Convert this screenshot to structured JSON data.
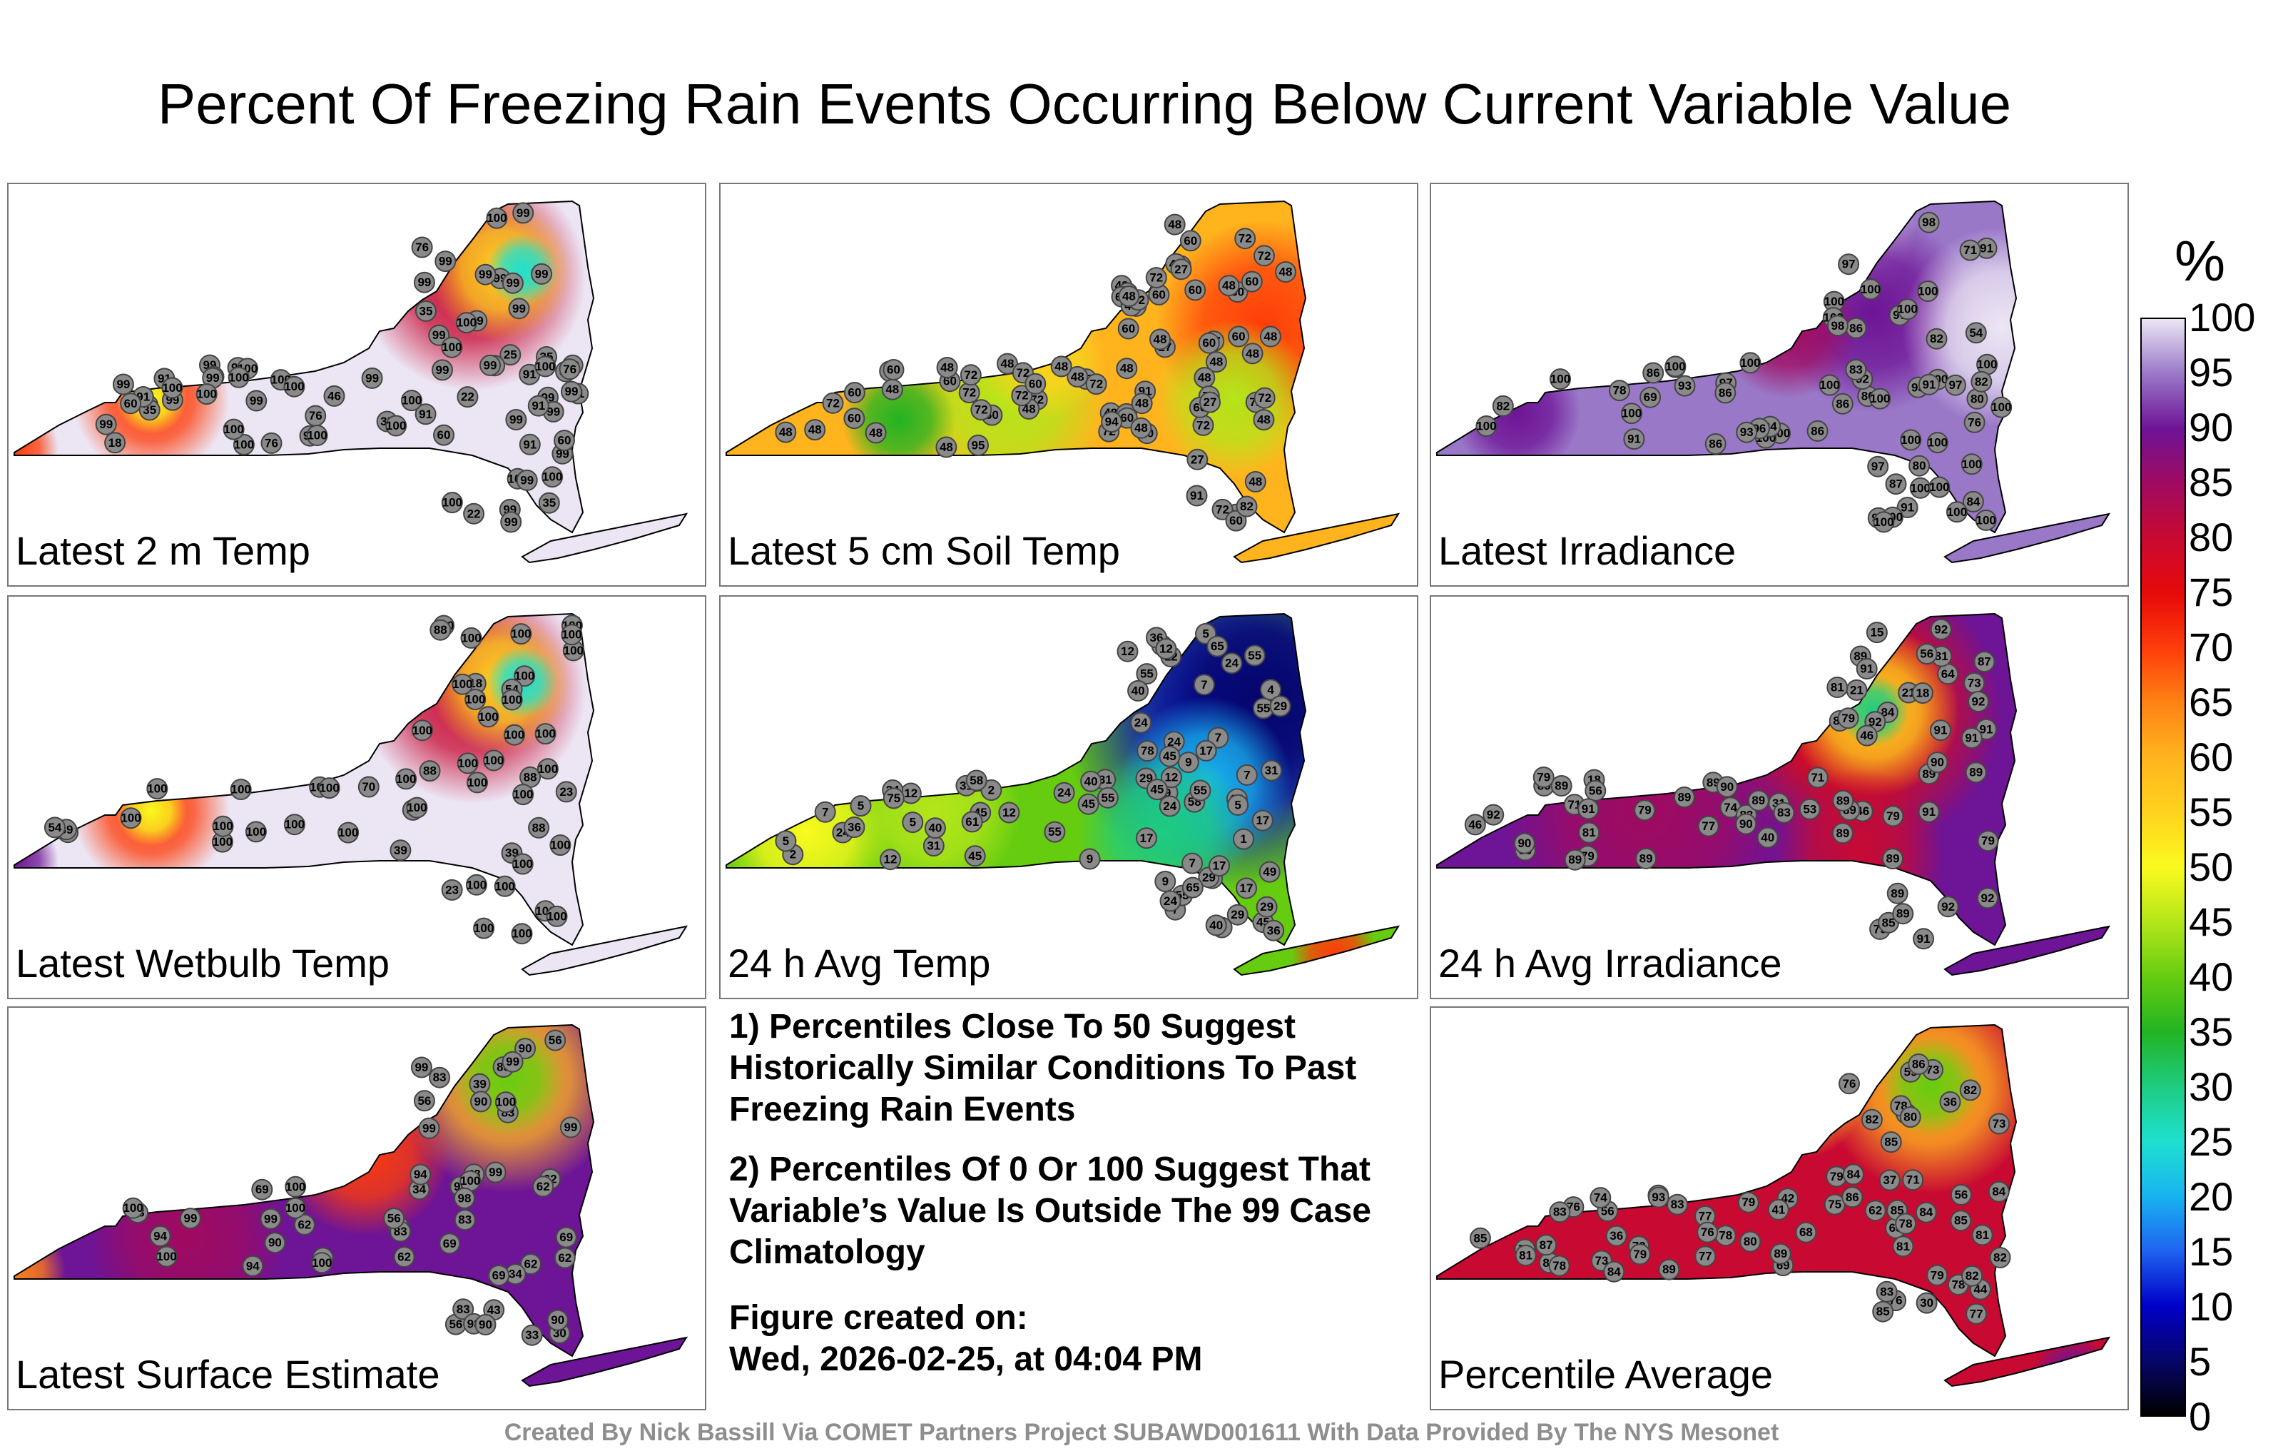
{
  "figure": {
    "title": "Percent Of Freezing Rain Events Occurring Below Current Variable Value",
    "credit": "Created By Nick Bassill Via COMET Partners Project SUBAWD001611 With Data Provided By The NYS Mesonet",
    "notes": [
      "1) Percentiles Close To 50 Suggest Historically Similar Conditions To Past Freezing Rain Events",
      "2) Percentiles Of 0 Or 100 Suggest That Variable’s Value Is Outside The 99 Case Climatology"
    ],
    "created_label": "Figure created on:",
    "created_date": "Wed, 2026-02-25, at 04:04 PM"
  },
  "colorbar": {
    "unit": "%",
    "ticks": [
      0,
      5,
      10,
      15,
      20,
      25,
      30,
      35,
      40,
      45,
      50,
      55,
      60,
      65,
      70,
      75,
      80,
      85,
      90,
      95,
      100
    ],
    "colors": [
      "#000000",
      "#06066a",
      "#0000c8",
      "#1e64f0",
      "#18b4f0",
      "#1ee0d0",
      "#1ecc80",
      "#22b422",
      "#66cc10",
      "#b4e61a",
      "#fafa1e",
      "#ffd21e",
      "#ffb41e",
      "#ff8214",
      "#ff3c0a",
      "#e60a0a",
      "#c80a32",
      "#a00a60",
      "#6e1496",
      "#9a78c8",
      "#ece6f4"
    ]
  },
  "chart_data": [
    {
      "type": "heatmap",
      "title": "Latest 2 m Temp",
      "station_values": [
        99,
        91,
        76,
        18,
        76,
        99,
        99,
        22,
        35,
        91,
        91,
        11,
        25,
        99,
        22,
        91,
        76,
        35,
        35,
        60,
        76,
        35,
        91,
        46,
        99,
        99,
        60,
        99,
        99,
        99,
        99,
        99,
        99,
        99,
        99,
        99,
        99,
        99,
        100,
        99,
        99,
        99,
        99,
        99,
        100,
        99,
        100,
        99,
        99,
        100,
        100,
        99,
        99,
        91,
        100,
        99,
        99,
        76,
        35,
        60,
        60,
        99,
        99,
        100,
        100,
        100,
        100,
        100,
        100,
        100,
        100,
        100,
        76,
        100,
        100,
        100
      ]
    },
    {
      "type": "heatmap",
      "title": "Latest 5 cm Soil Temp",
      "station_values": [
        72,
        60,
        60,
        72,
        27,
        72,
        48,
        48,
        60,
        95,
        48,
        48,
        91,
        27,
        72,
        72,
        60,
        82,
        48,
        60,
        27,
        72,
        60,
        91,
        72,
        48,
        72,
        48,
        60,
        60,
        60,
        48,
        48,
        72,
        72,
        48,
        48,
        72,
        72,
        48,
        48,
        72,
        60,
        60,
        60,
        48,
        27,
        72,
        48,
        48,
        60,
        60,
        27,
        48,
        48,
        27,
        48,
        72,
        48,
        72,
        48,
        48,
        60,
        60,
        48,
        60,
        72,
        82,
        48,
        60,
        48,
        60,
        72,
        48,
        48,
        27,
        48,
        94,
        48,
        60,
        60,
        48,
        60
      ]
    },
    {
      "type": "heatmap",
      "title": "Latest Irradiance",
      "station_values": [
        86,
        98,
        80,
        91,
        94,
        100,
        86,
        92,
        87,
        97,
        91,
        100,
        54,
        71,
        69,
        84,
        86,
        80,
        78,
        100,
        93,
        86,
        97,
        86,
        82,
        83,
        89,
        100,
        93,
        100,
        100,
        91,
        97,
        94,
        76,
        82,
        100,
        91,
        100,
        100,
        86,
        82,
        100,
        100,
        100,
        97,
        100,
        96,
        86,
        100,
        100,
        100,
        100,
        97,
        98,
        93,
        100,
        100,
        100,
        100,
        100,
        100,
        100,
        100,
        100
      ]
    },
    {
      "type": "heatmap",
      "title": "Latest Wetbulb Temp",
      "station_values": [
        100,
        88,
        100,
        18,
        100,
        100,
        100,
        23,
        39,
        100,
        100,
        11,
        23,
        39,
        54,
        88,
        54,
        39,
        100,
        100,
        100,
        100,
        100,
        100,
        100,
        100,
        100,
        100,
        100,
        100,
        100,
        100,
        39,
        70,
        88,
        100,
        100,
        100,
        100,
        100,
        100,
        100,
        100,
        100,
        100,
        100,
        100,
        88,
        100,
        100,
        100,
        100,
        100,
        100
      ]
    },
    {
      "type": "heatmap",
      "title": "24 h Avg Temp",
      "station_values": [
        7,
        12,
        5,
        5,
        24,
        2,
        29,
        5,
        5,
        5,
        31,
        5,
        7,
        7,
        4,
        2,
        24,
        17,
        7,
        7,
        7,
        12,
        5,
        9,
        12,
        1,
        9,
        12,
        9,
        17,
        24,
        9,
        17,
        29,
        58,
        55,
        55,
        49,
        45,
        31,
        24,
        17,
        12,
        55,
        40,
        55,
        45,
        36,
        17,
        24,
        12,
        12,
        65,
        45,
        55,
        40,
        45,
        29,
        24,
        29,
        31,
        36,
        40,
        49,
        55,
        36,
        29,
        24,
        31,
        24,
        24,
        40,
        45,
        75,
        65,
        78,
        58,
        61,
        55,
        45
      ]
    },
    {
      "type": "heatmap",
      "title": "24 h Avg Irradiance",
      "station_values": [
        74,
        89,
        89,
        31,
        89,
        79,
        89,
        40,
        64,
        89,
        83,
        79,
        18,
        21,
        21,
        46,
        90,
        56,
        79,
        15,
        18,
        71,
        81,
        79,
        53,
        46,
        73,
        56,
        83,
        84,
        79,
        71,
        89,
        77,
        92,
        89,
        91,
        89,
        84,
        81,
        79,
        85,
        89,
        89,
        89,
        91,
        92,
        89,
        90,
        91,
        46,
        90,
        89,
        89,
        91,
        90,
        89,
        81,
        79,
        91,
        92,
        87,
        92,
        90,
        91,
        92,
        89,
        92,
        91
      ]
    },
    {
      "type": "heatmap",
      "title": "Latest Surface Estimate",
      "station_values": [
        69,
        62,
        56,
        33,
        69,
        34,
        39,
        62,
        83,
        30,
        43,
        34,
        43,
        62,
        90,
        56,
        62,
        90,
        94,
        90,
        83,
        83,
        69,
        90,
        69,
        56,
        94,
        99,
        90,
        98,
        83,
        90,
        56,
        62,
        94,
        100,
        99,
        98,
        83,
        83,
        90,
        62,
        98,
        99,
        94,
        99,
        99,
        100,
        100,
        99,
        99,
        100,
        100,
        100,
        100
      ]
    },
    {
      "type": "heatmap",
      "title": "Percentile Average",
      "station_values": [
        72,
        73,
        69,
        62,
        76,
        36,
        77,
        75,
        42,
        56,
        71,
        44,
        36,
        37,
        74,
        68,
        30,
        41,
        68,
        85,
        83,
        77,
        79,
        76,
        78,
        73,
        81,
        84,
        86,
        82,
        79,
        78,
        59,
        82,
        78,
        85,
        86,
        85,
        84,
        82,
        80,
        79,
        77,
        56,
        83,
        73,
        85,
        79,
        81,
        78,
        83,
        76,
        82,
        80,
        84,
        81,
        79,
        78,
        76,
        82,
        80,
        84,
        89,
        83,
        87,
        85,
        93,
        89
      ]
    }
  ]
}
